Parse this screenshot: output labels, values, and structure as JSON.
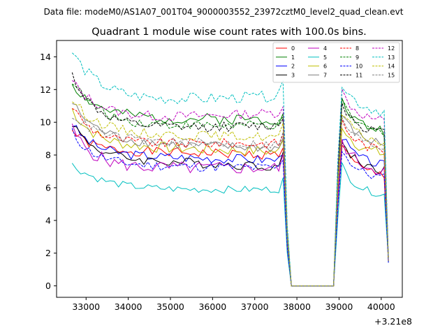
{
  "chart_data": {
    "type": "line",
    "suptitle": "Data file: modeM0/AS1A07_001T04_9000003552_23972cztM0_level2_quad_clean.evt",
    "title": "Quadrant 1 module wise count rates with 100.0s bins.",
    "xlabel": "",
    "ylabel": "",
    "x_offset_label": "+3.21e8",
    "xlim": [
      32300,
      40500
    ],
    "ylim": [
      -0.7,
      15
    ],
    "xticks": [
      33000,
      34000,
      35000,
      36000,
      37000,
      38000,
      39000,
      40000
    ],
    "xtick_labels": [
      "33000",
      "34000",
      "35000",
      "36000",
      "37000",
      "38000",
      "39000",
      "40000"
    ],
    "yticks": [
      0,
      2,
      4,
      6,
      8,
      10,
      12,
      14
    ],
    "ytick_labels": [
      "0",
      "2",
      "4",
      "6",
      "8",
      "10",
      "12",
      "14"
    ],
    "legend_position": "upper right",
    "legend_columns": 4,
    "x_start": 32670,
    "x_step": 100,
    "segments": [
      [
        0,
        50
      ],
      [
        51,
        62
      ],
      [
        63,
        75
      ]
    ],
    "series": [
      {
        "name": "0",
        "color": "#ff0000",
        "dash": "solid",
        "start": 9.5,
        "drop": 1.2,
        "tau": 4,
        "drift": -0.3,
        "amp": 0.3,
        "post": 7.0,
        "seed": 1
      },
      {
        "name": "1",
        "color": "#008000",
        "dash": "solid",
        "start": 12.4,
        "drop": 2.2,
        "tau": 6,
        "drift": 0.0,
        "amp": 0.35,
        "post": 9.7,
        "seed": 2
      },
      {
        "name": "2",
        "color": "#0000ff",
        "dash": "solid",
        "start": 9.9,
        "drop": 1.9,
        "tau": 5,
        "drift": -0.3,
        "amp": 0.3,
        "post": 7.6,
        "seed": 3
      },
      {
        "name": "3",
        "color": "#000000",
        "dash": "solid",
        "start": 10.0,
        "drop": 2.2,
        "tau": 5,
        "drift": -0.5,
        "amp": 0.3,
        "post": 7.3,
        "seed": 4
      },
      {
        "name": "4",
        "color": "#bf00bf",
        "dash": "solid",
        "start": 9.6,
        "drop": 2.4,
        "tau": 5,
        "drift": 0.0,
        "amp": 0.4,
        "post": 7.3,
        "seed": 5
      },
      {
        "name": "5",
        "color": "#00bfbf",
        "dash": "solid",
        "start": 7.4,
        "drop": 1.6,
        "tau": 8,
        "drift": 0.1,
        "amp": 0.22,
        "post": 5.8,
        "seed": 6
      },
      {
        "name": "6",
        "color": "#bfbf00",
        "dash": "solid",
        "start": 10.8,
        "drop": 2.2,
        "tau": 5,
        "drift": -0.4,
        "amp": 0.35,
        "post": 8.3,
        "seed": 7
      },
      {
        "name": "7",
        "color": "#808080",
        "dash": "solid",
        "start": 11.2,
        "drop": 2.4,
        "tau": 6,
        "drift": -0.4,
        "amp": 0.3,
        "post": 8.9,
        "seed": 8
      },
      {
        "name": "8",
        "color": "#ff0000",
        "dash": "dashed",
        "start": 11.0,
        "drop": 2.3,
        "tau": 5,
        "drift": 0.0,
        "amp": 0.3,
        "post": 8.5,
        "seed": 9
      },
      {
        "name": "9",
        "color": "#008000",
        "dash": "dashed",
        "start": 12.6,
        "drop": 2.8,
        "tau": 6,
        "drift": 0.0,
        "amp": 0.3,
        "post": 9.6,
        "seed": 10
      },
      {
        "name": "10",
        "color": "#0000ff",
        "dash": "dashed",
        "start": 9.4,
        "drop": 2.0,
        "tau": 5,
        "drift": -0.2,
        "amp": 0.3,
        "post": 6.8,
        "seed": 11
      },
      {
        "name": "11",
        "color": "#000000",
        "dash": "dashed",
        "start": 12.9,
        "drop": 3.4,
        "tau": 6,
        "drift": 0.3,
        "amp": 0.3,
        "post": 9.6,
        "seed": 12
      },
      {
        "name": "12",
        "color": "#bf00bf",
        "dash": "dashed",
        "start": 12.5,
        "drop": 2.5,
        "tau": 7,
        "drift": 0.6,
        "amp": 0.3,
        "post": 10.3,
        "seed": 13
      },
      {
        "name": "13",
        "color": "#00bfbf",
        "dash": "dashed",
        "start": 14.3,
        "drop": 3.2,
        "tau": 7,
        "drift": 0.5,
        "amp": 0.35,
        "post": 10.9,
        "seed": 14
      },
      {
        "name": "14",
        "color": "#bfbf00",
        "dash": "dashed",
        "start": 11.4,
        "drop": 2.1,
        "tau": 6,
        "drift": -0.2,
        "amp": 0.3,
        "post": 9.0,
        "seed": 15
      },
      {
        "name": "15",
        "color": "#808080",
        "dash": "dashed",
        "start": 10.5,
        "drop": 1.6,
        "tau": 6,
        "drift": -0.3,
        "amp": 0.3,
        "post": 8.7,
        "seed": 16
      }
    ]
  }
}
